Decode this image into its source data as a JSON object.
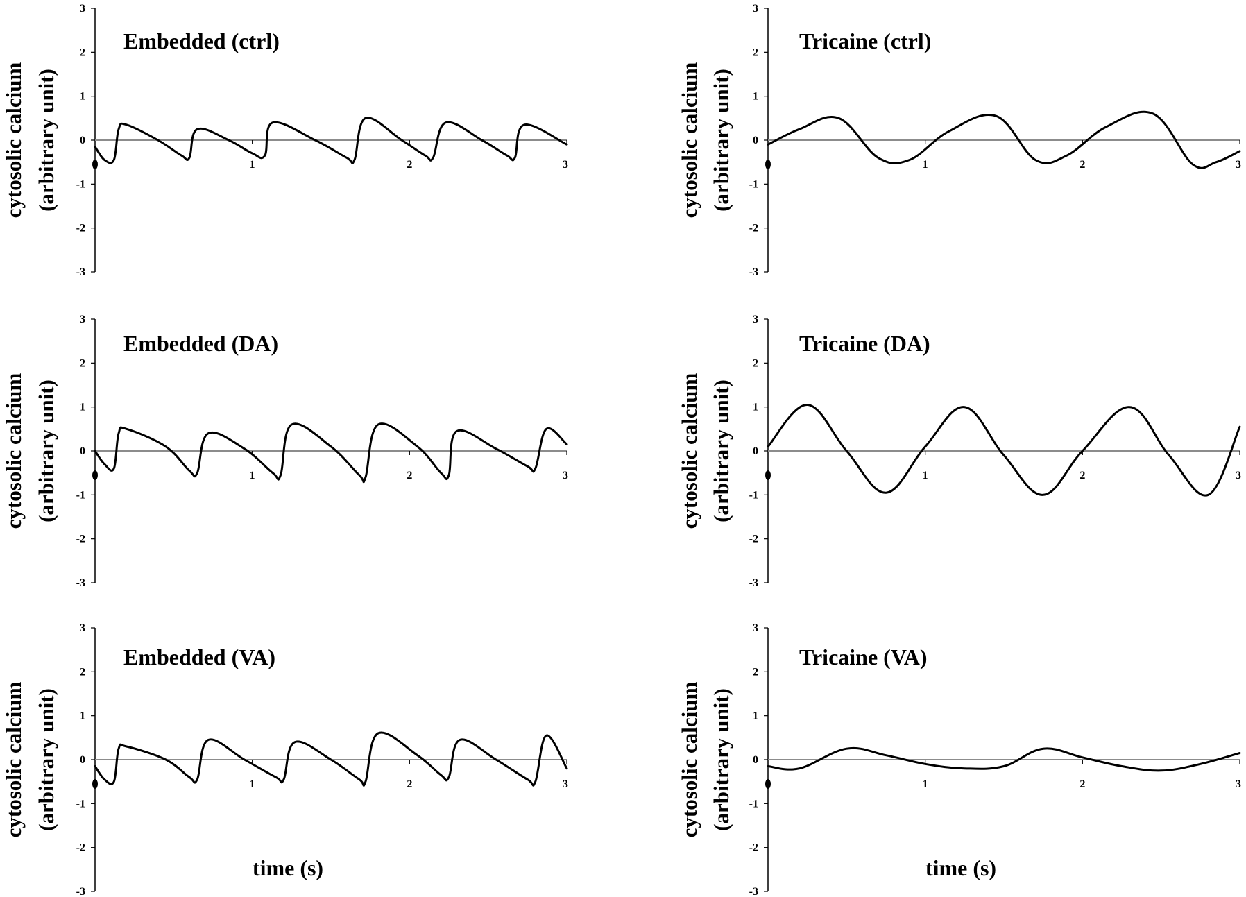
{
  "figure": {
    "y_axis_label_line1": "cytosolic calcium",
    "y_axis_label_line2": "(arbitrary unit)",
    "x_axis_label": "time (s)"
  },
  "colors": {
    "axis": "#000000",
    "zero_line": "#8c8c8c",
    "trace": "#000000"
  },
  "chart_data": [
    {
      "type": "line",
      "title": "Embedded (ctrl)",
      "ylabel": "cytosolic calcium (arbitrary unit)",
      "xlabel": "",
      "xlim": [
        0,
        3
      ],
      "ylim": [
        -3,
        3
      ],
      "x_ticks": [
        "1",
        "2",
        "3"
      ],
      "y_ticks": [
        "3",
        "2",
        "1",
        "0",
        "-1",
        "-2",
        "-3"
      ],
      "series": [
        {
          "x": [
            0,
            0.06,
            0.12,
            0.15,
            0.2,
            0.4,
            0.55,
            0.6,
            0.65,
            0.85,
            1.0,
            1.08,
            1.13,
            1.4,
            1.6,
            1.65,
            1.72,
            1.95,
            2.1,
            2.15,
            2.23,
            2.46,
            2.62,
            2.67,
            2.73,
            3.0
          ],
          "y": [
            -0.15,
            -0.45,
            -0.45,
            0.25,
            0.35,
            0.0,
            -0.35,
            -0.4,
            0.25,
            0.0,
            -0.3,
            -0.35,
            0.4,
            0.0,
            -0.4,
            -0.45,
            0.5,
            0.0,
            -0.35,
            -0.4,
            0.4,
            0.0,
            -0.35,
            -0.4,
            0.35,
            -0.1
          ]
        }
      ]
    },
    {
      "type": "line",
      "title": "Tricaine (ctrl)",
      "ylabel": "cytosolic calcium (arbitrary unit)",
      "xlabel": "",
      "xlim": [
        0,
        3
      ],
      "ylim": [
        -3,
        3
      ],
      "x_ticks": [
        "1",
        "2",
        "3"
      ],
      "y_ticks": [
        "3",
        "2",
        "1",
        "0",
        "-1",
        "-2",
        "-3"
      ],
      "series": [
        {
          "x": [
            0,
            0.2,
            0.45,
            0.7,
            0.9,
            1.15,
            1.45,
            1.7,
            1.9,
            2.15,
            2.45,
            2.7,
            2.85,
            3.0
          ],
          "y": [
            -0.1,
            0.25,
            0.5,
            -0.4,
            -0.45,
            0.2,
            0.55,
            -0.45,
            -0.35,
            0.3,
            0.6,
            -0.55,
            -0.5,
            -0.25
          ]
        }
      ]
    },
    {
      "type": "line",
      "title": "Embedded (DA)",
      "ylabel": "cytosolic calcium (arbitrary unit)",
      "xlabel": "",
      "xlim": [
        0,
        3
      ],
      "ylim": [
        -3,
        3
      ],
      "x_ticks": [
        "1",
        "2",
        "3"
      ],
      "y_ticks": [
        "3",
        "2",
        "1",
        "0",
        "-1",
        "-2",
        "-3"
      ],
      "series": [
        {
          "x": [
            0,
            0.06,
            0.12,
            0.15,
            0.2,
            0.45,
            0.6,
            0.65,
            0.72,
            0.95,
            1.13,
            1.18,
            1.25,
            1.5,
            1.68,
            1.72,
            1.8,
            2.05,
            2.2,
            2.25,
            2.3,
            2.55,
            2.75,
            2.8,
            2.87,
            3.0
          ],
          "y": [
            0.0,
            -0.3,
            -0.4,
            0.4,
            0.5,
            0.1,
            -0.45,
            -0.5,
            0.4,
            0.05,
            -0.5,
            -0.55,
            0.6,
            0.1,
            -0.55,
            -0.6,
            0.6,
            0.1,
            -0.5,
            -0.55,
            0.45,
            0.05,
            -0.35,
            -0.4,
            0.5,
            0.15
          ]
        }
      ]
    },
    {
      "type": "line",
      "title": "Tricaine (DA)",
      "ylabel": "cytosolic calcium (arbitrary unit)",
      "xlabel": "",
      "xlim": [
        0,
        3
      ],
      "ylim": [
        -3,
        3
      ],
      "x_ticks": [
        "1",
        "2",
        "3"
      ],
      "y_ticks": [
        "3",
        "2",
        "1",
        "0",
        "-1",
        "-2",
        "-3"
      ],
      "series": [
        {
          "x": [
            0,
            0.25,
            0.5,
            0.75,
            1.0,
            1.25,
            1.5,
            1.75,
            2.0,
            2.3,
            2.55,
            2.8,
            3.0
          ],
          "y": [
            0.1,
            1.05,
            0.0,
            -0.95,
            0.1,
            1.0,
            -0.1,
            -1.0,
            0.0,
            1.0,
            -0.1,
            -1.0,
            0.55
          ]
        }
      ]
    },
    {
      "type": "line",
      "title": "Embedded (VA)",
      "ylabel": "cytosolic calcium (arbitrary unit)",
      "xlabel": "time (s)",
      "xlim": [
        0,
        3
      ],
      "ylim": [
        -3,
        3
      ],
      "x_ticks": [
        "1",
        "2",
        "3"
      ],
      "y_ticks": [
        "3",
        "2",
        "1",
        "0",
        "-1",
        "-2",
        "-3"
      ],
      "series": [
        {
          "x": [
            0,
            0.06,
            0.12,
            0.15,
            0.2,
            0.45,
            0.6,
            0.65,
            0.72,
            0.95,
            1.15,
            1.2,
            1.27,
            1.5,
            1.68,
            1.72,
            1.8,
            2.05,
            2.2,
            2.25,
            2.32,
            2.55,
            2.75,
            2.8,
            2.87,
            3.0
          ],
          "y": [
            -0.15,
            -0.45,
            -0.5,
            0.25,
            0.3,
            0.0,
            -0.4,
            -0.45,
            0.45,
            0.0,
            -0.4,
            -0.45,
            0.4,
            0.0,
            -0.45,
            -0.5,
            0.6,
            0.1,
            -0.35,
            -0.4,
            0.45,
            0.0,
            -0.45,
            -0.5,
            0.55,
            -0.2
          ]
        }
      ]
    },
    {
      "type": "line",
      "title": "Tricaine (VA)",
      "ylabel": "cytosolic calcium (arbitrary unit)",
      "xlabel": "time (s)",
      "xlim": [
        0,
        3
      ],
      "ylim": [
        -3,
        3
      ],
      "x_ticks": [
        "1",
        "2",
        "3"
      ],
      "y_ticks": [
        "3",
        "2",
        "1",
        "0",
        "-1",
        "-2",
        "-3"
      ],
      "series": [
        {
          "x": [
            0,
            0.2,
            0.5,
            0.75,
            1.0,
            1.25,
            1.5,
            1.75,
            2.0,
            2.25,
            2.5,
            2.75,
            3.0
          ],
          "y": [
            -0.15,
            -0.2,
            0.25,
            0.1,
            -0.1,
            -0.2,
            -0.15,
            0.25,
            0.05,
            -0.15,
            -0.25,
            -0.1,
            0.15
          ]
        }
      ]
    }
  ]
}
